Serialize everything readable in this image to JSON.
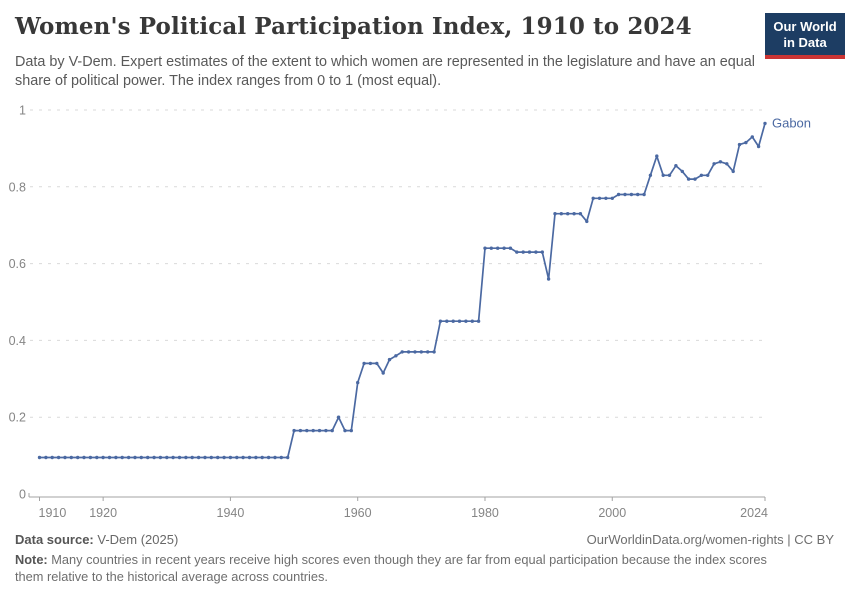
{
  "header": {
    "title": "Women's Political Participation Index, 1910 to 2024",
    "subtitle": "Data by V-Dem. Expert estimates of the extent to which women are represented in the legislature and have an equal share of political power. The index ranges from 0 to 1 (most equal)."
  },
  "logo": {
    "line1": "Our World",
    "line2": "in Data"
  },
  "footer": {
    "source_label": "Data source:",
    "source_value": " V-Dem (2025)",
    "link": "OurWorldinData.org/women-rights | CC BY",
    "note_label": "Note:",
    "note_text": " Many countries in recent years receive high scores even though they are far from equal participation because the index scores them relative to the historical average across countries."
  },
  "colors": {
    "line": "#4b69a2",
    "grid": "#d9d9d9",
    "axis": "#a3a3a3",
    "tick_label": "#858585",
    "logo_bg": "#1d3d63",
    "logo_bar": "#cb3434",
    "title_text": "#383838"
  },
  "chart_data": {
    "type": "line",
    "title": "Women's Political Participation Index, 1910 to 2024",
    "xlabel": "",
    "ylabel": "",
    "x_range": [
      1910,
      2024
    ],
    "interval": "annual",
    "ylim": [
      0,
      1
    ],
    "xticks": [
      1910,
      1920,
      1940,
      1960,
      1980,
      2000,
      2024
    ],
    "yticks": [
      0,
      0.2,
      0.4,
      0.6,
      0.8,
      1
    ],
    "grid": "horizontal-dashed",
    "legend_position": "end-of-line-label",
    "series": [
      {
        "name": "Gabon",
        "color": "#4b69a2",
        "values": [
          0.095,
          0.095,
          0.095,
          0.095,
          0.095,
          0.095,
          0.095,
          0.095,
          0.095,
          0.095,
          0.095,
          0.095,
          0.095,
          0.095,
          0.095,
          0.095,
          0.095,
          0.095,
          0.095,
          0.095,
          0.095,
          0.095,
          0.095,
          0.095,
          0.095,
          0.095,
          0.095,
          0.095,
          0.095,
          0.095,
          0.095,
          0.095,
          0.095,
          0.095,
          0.095,
          0.095,
          0.095,
          0.095,
          0.095,
          0.095,
          0.165,
          0.165,
          0.165,
          0.165,
          0.165,
          0.165,
          0.165,
          0.2,
          0.165,
          0.165,
          0.29,
          0.34,
          0.34,
          0.34,
          0.315,
          0.35,
          0.36,
          0.37,
          0.37,
          0.37,
          0.37,
          0.37,
          0.37,
          0.45,
          0.45,
          0.45,
          0.45,
          0.45,
          0.45,
          0.45,
          0.64,
          0.64,
          0.64,
          0.64,
          0.64,
          0.63,
          0.63,
          0.63,
          0.63,
          0.63,
          0.56,
          0.73,
          0.73,
          0.73,
          0.73,
          0.73,
          0.71,
          0.77,
          0.77,
          0.77,
          0.77,
          0.78,
          0.78,
          0.78,
          0.78,
          0.78,
          0.83,
          0.88,
          0.83,
          0.83,
          0.855,
          0.84,
          0.82,
          0.82,
          0.83,
          0.83,
          0.86,
          0.865,
          0.86,
          0.84,
          0.91,
          0.915,
          0.93,
          0.905,
          0.965
        ]
      }
    ]
  }
}
